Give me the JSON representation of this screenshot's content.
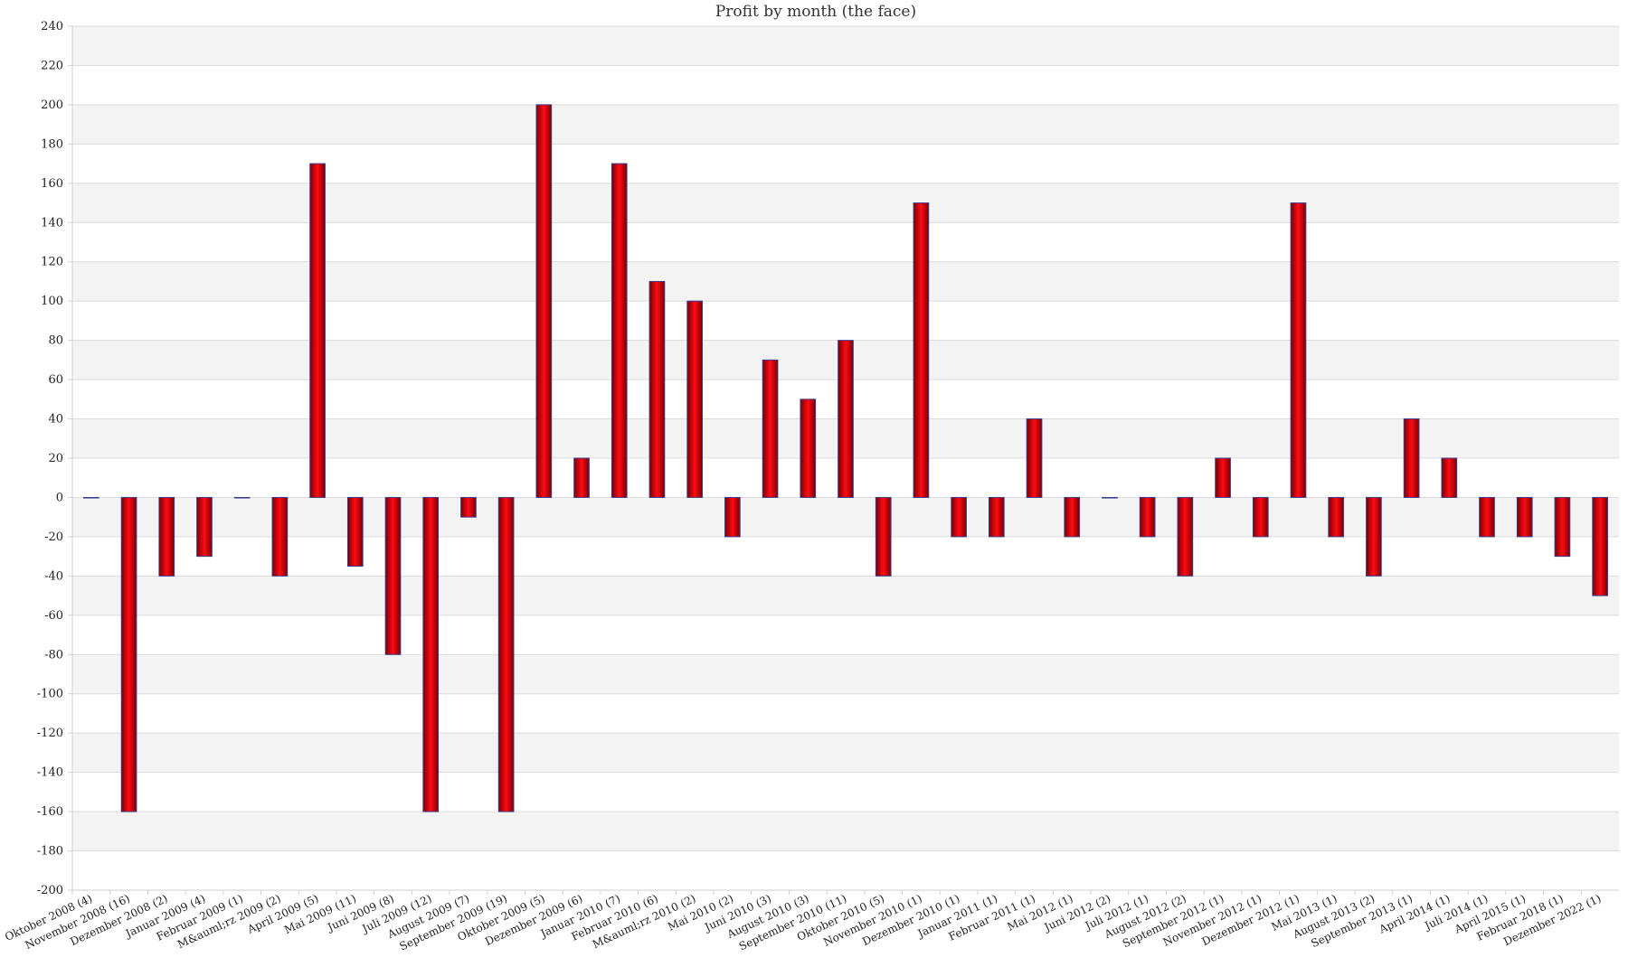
{
  "chart_data": {
    "type": "bar",
    "title": "Profit by month  (the face)",
    "xlabel": "",
    "ylabel": "",
    "ylim": [
      -200,
      240
    ],
    "ytick_step": 20,
    "yticks": [
      "240",
      "220",
      "200",
      "180",
      "160",
      "140",
      "120",
      "100",
      "80",
      "60",
      "40",
      "20",
      "0",
      "-20",
      "-40",
      "-60",
      "-80",
      "-100",
      "-120",
      "-140",
      "-160",
      "-180",
      "-200"
    ],
    "grid": true,
    "legend": "none",
    "bar_color": "#e8000a",
    "bar_border_color": "#3b3b8c",
    "categories": [
      "Oktober 2008 (4)",
      "November 2008 (16)",
      "Dezember 2008 (2)",
      "Januar 2009 (4)",
      "Februar 2009 (1)",
      "M&auml;rz 2009 (2)",
      "April 2009 (5)",
      "Mai 2009 (11)",
      "Juni 2009 (8)",
      "Juli 2009 (12)",
      "August 2009 (7)",
      "September 2009 (19)",
      "Oktober 2009 (5)",
      "Dezember 2009 (6)",
      "Januar 2010 (7)",
      "Februar 2010 (6)",
      "M&auml;rz 2010 (2)",
      "Mai 2010 (2)",
      "Juni 2010 (3)",
      "August 2010 (3)",
      "September 2010 (11)",
      "Oktober 2010 (5)",
      "November 2010 (1)",
      "Dezember 2010 (1)",
      "Januar 2011 (1)",
      "Februar 2011 (1)",
      "Mai 2012 (1)",
      "Juni 2012 (2)",
      "Juli 2012 (1)",
      "August 2012 (2)",
      "September 2012 (1)",
      "November 2012 (1)",
      "Dezember 2012 (1)",
      "Mai 2013 (1)",
      "August 2013 (2)",
      "September 2013 (1)",
      "April 2014 (1)",
      "Juli 2014 (1)",
      "April 2015 (1)",
      "Februar 2018 (1)",
      "Dezember 2022 (1)"
    ],
    "values": [
      0,
      -160,
      -40,
      -30,
      0,
      -40,
      170,
      -35,
      -80,
      -160,
      -10,
      -160,
      200,
      20,
      170,
      110,
      100,
      -20,
      70,
      50,
      80,
      -40,
      150,
      -20,
      -20,
      40,
      -20,
      0,
      -20,
      -40,
      20,
      -20,
      150,
      -20,
      -40,
      40,
      20,
      -20,
      -20,
      -30,
      -50
    ]
  }
}
